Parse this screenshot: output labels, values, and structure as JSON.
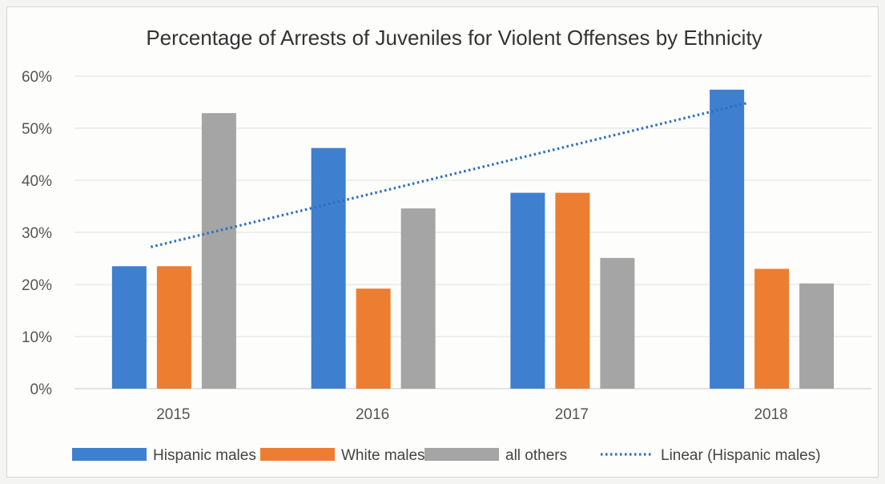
{
  "chart_data": {
    "type": "bar",
    "title": "Percentage of Arrests of Juveniles for Violent Offenses by Ethnicity",
    "categories": [
      "2015",
      "2016",
      "2017",
      "2018"
    ],
    "y_ticks": [
      "0%",
      "10%",
      "20%",
      "30%",
      "40%",
      "50%",
      "60%"
    ],
    "ylim": [
      0,
      60
    ],
    "grid": true,
    "legend_position": "bottom",
    "series": [
      {
        "name": "Hispanic males",
        "values": [
          23.5,
          46.2,
          37.6,
          57.4
        ],
        "color": "#3f7fcf"
      },
      {
        "name": "White males",
        "values": [
          23.5,
          19.2,
          37.6,
          23.0
        ],
        "color": "#ed7d31"
      },
      {
        "name": "all others",
        "values": [
          52.9,
          34.6,
          25.1,
          20.2
        ],
        "color": "#a5a5a5"
      }
    ],
    "trendline": {
      "name": "Linear (Hispanic males)",
      "series": "Hispanic males",
      "type": "linear",
      "style": "dotted",
      "color": "#2e6fbf",
      "values": [
        27.2,
        36.4,
        45.7,
        54.9
      ]
    }
  }
}
